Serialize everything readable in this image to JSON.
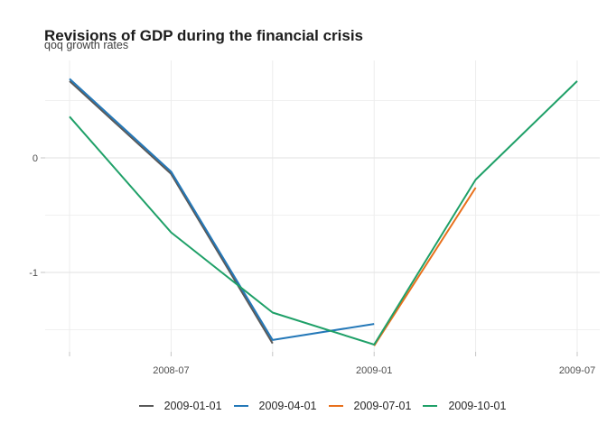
{
  "title": "Revisions of GDP during the financial crisis",
  "subtitle": "qoq growth rates",
  "chart_data": {
    "type": "line",
    "title": "Revisions of GDP during the financial crisis",
    "subtitle": "qoq growth rates",
    "x_categories": [
      "2008-04",
      "2008-07",
      "2008-10",
      "2009-01",
      "2009-04",
      "2009-07"
    ],
    "x_tick_labels": [
      "2008-07",
      "2009-01",
      "2009-07"
    ],
    "y_ticks": [
      0,
      -1
    ],
    "y_minor_ticks": [
      0.5,
      -0.5,
      -1.5
    ],
    "ylim": [
      -1.69,
      0.85
    ],
    "grid": true,
    "legend_position": "bottom",
    "series": [
      {
        "name": "2009-01-01",
        "color": "#595959",
        "points": [
          [
            "2008-04",
            0.67
          ],
          [
            "2008-07",
            -0.14
          ],
          [
            "2008-10",
            -1.62
          ]
        ]
      },
      {
        "name": "2009-04-01",
        "color": "#2478b8",
        "points": [
          [
            "2008-04",
            0.69
          ],
          [
            "2008-07",
            -0.12
          ],
          [
            "2008-10",
            -1.59
          ],
          [
            "2009-01",
            -1.45
          ]
        ]
      },
      {
        "name": "2009-07-01",
        "color": "#e8701c",
        "points": [
          [
            "2009-01",
            -1.64
          ],
          [
            "2009-04",
            -0.26
          ]
        ]
      },
      {
        "name": "2009-10-01",
        "color": "#1fa068",
        "points": [
          [
            "2008-04",
            0.36
          ],
          [
            "2008-07",
            -0.65
          ],
          [
            "2008-10",
            -1.35
          ],
          [
            "2009-01",
            -1.63
          ],
          [
            "2009-04",
            -0.19
          ],
          [
            "2009-07",
            0.67
          ]
        ]
      }
    ]
  }
}
